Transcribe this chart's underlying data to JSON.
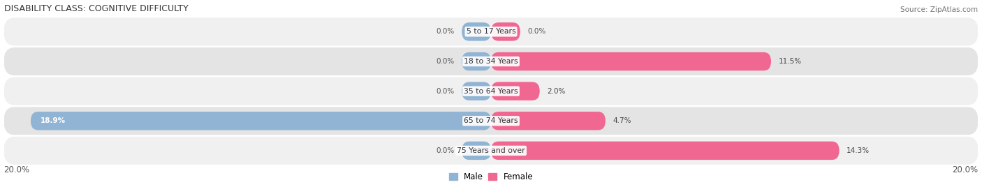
{
  "title": "DISABILITY CLASS: COGNITIVE DIFFICULTY",
  "source": "Source: ZipAtlas.com",
  "categories": [
    "5 to 17 Years",
    "18 to 34 Years",
    "35 to 64 Years",
    "65 to 74 Years",
    "75 Years and over"
  ],
  "male_values": [
    0.0,
    0.0,
    0.0,
    18.9,
    0.0
  ],
  "female_values": [
    0.0,
    11.5,
    2.0,
    4.7,
    14.3
  ],
  "male_color": "#92b4d4",
  "female_color": "#f06892",
  "row_bg_odd": "#f0f0f0",
  "row_bg_even": "#e4e4e4",
  "axis_limit": 20.0,
  "bar_height": 0.62,
  "background_color": "#ffffff",
  "label_bg_color": "#ffffff"
}
